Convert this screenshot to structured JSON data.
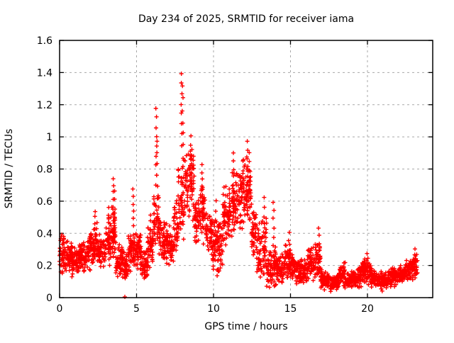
{
  "window": {
    "kind": "gnuplot-scatter-figure",
    "background": "#ffffff"
  },
  "colors": {
    "marker": "#ff0000",
    "grid": "#a8a8a8",
    "axis": "#000000",
    "text": "#000000",
    "background": "#ffffff"
  },
  "chart_data": {
    "type": "scatter",
    "title": "Day 234 of 2025, SRMTID for receiver iama",
    "xlabel": "GPS time / hours",
    "ylabel": "SRMTID / TECUs",
    "xlim": [
      0,
      24.24
    ],
    "ylim": [
      0,
      1.6
    ],
    "xticks": [
      0,
      5,
      10,
      15,
      20
    ],
    "ytick_values": [
      0,
      0.2,
      0.4,
      0.6,
      0.8,
      1.0,
      1.2,
      1.4,
      1.6
    ],
    "ytick_labels": [
      "0",
      "0.2",
      "0.4",
      "0.6",
      "0.8",
      "1",
      "1.2",
      "1.4",
      "1.6"
    ],
    "grid": true,
    "legend": "none",
    "marker_style": "plus",
    "marker_color": "#ff0000",
    "x_units": "hours",
    "y_units": "TECUs",
    "data_end_hour": 23.25,
    "peak_value": 1.4,
    "peak_hour": 7.95,
    "band_segments": [
      [
        0.0,
        0.3,
        0.14,
        0.42,
        40
      ],
      [
        0.3,
        0.8,
        0.14,
        0.36,
        60
      ],
      [
        0.8,
        1.3,
        0.12,
        0.33,
        60
      ],
      [
        1.3,
        1.8,
        0.15,
        0.36,
        60
      ],
      [
        1.8,
        2.2,
        0.17,
        0.44,
        50
      ],
      [
        2.2,
        2.45,
        0.18,
        0.5,
        30
      ],
      [
        2.45,
        3.0,
        0.17,
        0.4,
        65
      ],
      [
        3.0,
        3.35,
        0.2,
        0.52,
        42
      ],
      [
        3.35,
        3.65,
        0.22,
        0.6,
        36
      ],
      [
        3.65,
        4.1,
        0.12,
        0.33,
        54
      ],
      [
        4.1,
        4.45,
        0.1,
        0.3,
        42
      ],
      [
        4.45,
        4.85,
        0.15,
        0.4,
        48
      ],
      [
        4.85,
        5.3,
        0.15,
        0.43,
        54
      ],
      [
        5.3,
        5.7,
        0.1,
        0.32,
        48
      ],
      [
        5.7,
        6.1,
        0.17,
        0.46,
        48
      ],
      [
        6.1,
        6.45,
        0.25,
        0.7,
        46
      ],
      [
        6.45,
        6.95,
        0.2,
        0.52,
        60
      ],
      [
        6.95,
        7.4,
        0.17,
        0.46,
        54
      ],
      [
        7.4,
        7.7,
        0.25,
        0.62,
        36
      ],
      [
        7.7,
        8.15,
        0.3,
        0.95,
        54
      ],
      [
        8.15,
        8.75,
        0.45,
        0.98,
        70
      ],
      [
        8.75,
        9.1,
        0.32,
        0.68,
        42
      ],
      [
        9.1,
        9.45,
        0.32,
        0.72,
        42
      ],
      [
        9.45,
        9.9,
        0.25,
        0.58,
        54
      ],
      [
        9.9,
        10.6,
        0.12,
        0.5,
        84
      ],
      [
        10.6,
        11.2,
        0.3,
        0.72,
        72
      ],
      [
        11.2,
        11.8,
        0.38,
        0.82,
        72
      ],
      [
        11.8,
        12.45,
        0.4,
        0.88,
        80
      ],
      [
        12.45,
        12.8,
        0.22,
        0.6,
        42
      ],
      [
        12.8,
        13.45,
        0.12,
        0.5,
        72
      ],
      [
        13.45,
        14.05,
        0.03,
        0.32,
        66
      ],
      [
        14.05,
        14.6,
        0.08,
        0.28,
        62
      ],
      [
        14.6,
        15.05,
        0.1,
        0.36,
        52
      ],
      [
        15.05,
        15.6,
        0.08,
        0.3,
        62
      ],
      [
        15.6,
        16.1,
        0.07,
        0.26,
        56
      ],
      [
        16.1,
        16.6,
        0.1,
        0.33,
        56
      ],
      [
        16.6,
        16.95,
        0.1,
        0.38,
        40
      ],
      [
        16.95,
        17.55,
        0.04,
        0.18,
        68
      ],
      [
        17.55,
        18.15,
        0.03,
        0.15,
        68
      ],
      [
        18.15,
        18.55,
        0.05,
        0.24,
        46
      ],
      [
        18.55,
        19.1,
        0.04,
        0.17,
        62
      ],
      [
        19.1,
        19.6,
        0.05,
        0.2,
        56
      ],
      [
        19.6,
        20.25,
        0.07,
        0.27,
        74
      ],
      [
        20.25,
        20.75,
        0.05,
        0.2,
        56
      ],
      [
        20.75,
        21.35,
        0.04,
        0.17,
        68
      ],
      [
        21.35,
        21.95,
        0.06,
        0.19,
        68
      ],
      [
        21.95,
        22.45,
        0.08,
        0.21,
        56
      ],
      [
        22.45,
        22.95,
        0.09,
        0.24,
        56
      ],
      [
        22.95,
        23.25,
        0.12,
        0.3,
        34
      ]
    ],
    "spike_columns": [
      [
        2.3,
        0.3,
        0.54,
        7
      ],
      [
        3.2,
        0.3,
        0.56,
        7
      ],
      [
        3.5,
        0.35,
        0.74,
        10
      ],
      [
        3.58,
        0.3,
        0.66,
        8
      ],
      [
        4.78,
        0.25,
        0.68,
        10
      ],
      [
        5.9,
        0.28,
        0.52,
        6
      ],
      [
        6.28,
        0.7,
        1.18,
        9
      ],
      [
        6.34,
        0.55,
        0.97,
        7
      ],
      [
        7.93,
        0.95,
        1.4,
        8
      ],
      [
        8.0,
        0.8,
        1.31,
        8
      ],
      [
        8.5,
        0.62,
        1.0,
        9
      ],
      [
        9.27,
        0.45,
        0.83,
        9
      ],
      [
        10.15,
        0.3,
        0.6,
        6
      ],
      [
        11.3,
        0.5,
        0.9,
        9
      ],
      [
        12.2,
        0.55,
        0.97,
        9
      ],
      [
        12.35,
        0.5,
        0.9,
        8
      ],
      [
        13.3,
        0.2,
        0.62,
        8
      ],
      [
        13.9,
        0.15,
        0.6,
        9
      ],
      [
        14.9,
        0.15,
        0.4,
        6
      ],
      [
        16.85,
        0.15,
        0.43,
        7
      ],
      [
        20.0,
        0.12,
        0.28,
        5
      ],
      [
        23.1,
        0.12,
        0.3,
        6
      ]
    ],
    "outliers": [
      [
        4.24,
        0.005
      ]
    ]
  }
}
